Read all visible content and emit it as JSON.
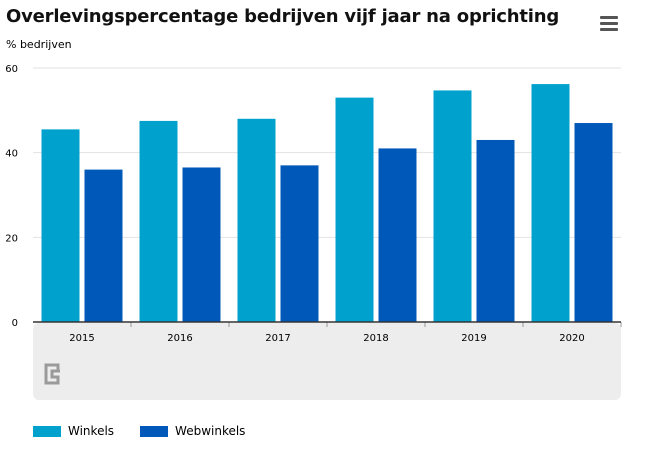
{
  "header": {
    "title": "Overlevingspercentage bedrijven vijf jaar na oprichting"
  },
  "menu": {
    "icon": "hamburger-menu-icon"
  },
  "footer": {
    "logo_icon": "cbs-logo-icon"
  },
  "colors": {
    "winkels": "#00A1CD",
    "webwinkels": "#0058B8",
    "footer_band": "#EDEDED",
    "grid": "#E2E2E2",
    "axis": "#333333"
  },
  "chart_data": {
    "type": "bar",
    "title": "Overlevingspercentage bedrijven vijf jaar na oprichting",
    "ylabel": "% bedrijven",
    "xlabel": "",
    "categories": [
      "2015",
      "2016",
      "2017",
      "2018",
      "2019",
      "2020"
    ],
    "series": [
      {
        "name": "Winkels",
        "values": [
          45.5,
          47.5,
          48,
          53,
          54.7,
          56.2
        ]
      },
      {
        "name": "Webwinkels",
        "values": [
          36,
          36.5,
          37,
          41,
          43,
          47
        ]
      }
    ],
    "ylim": [
      0,
      60
    ],
    "yticks": [
      "0",
      "20",
      "40",
      "60"
    ],
    "grid": true,
    "legend_position": "bottom-left"
  }
}
